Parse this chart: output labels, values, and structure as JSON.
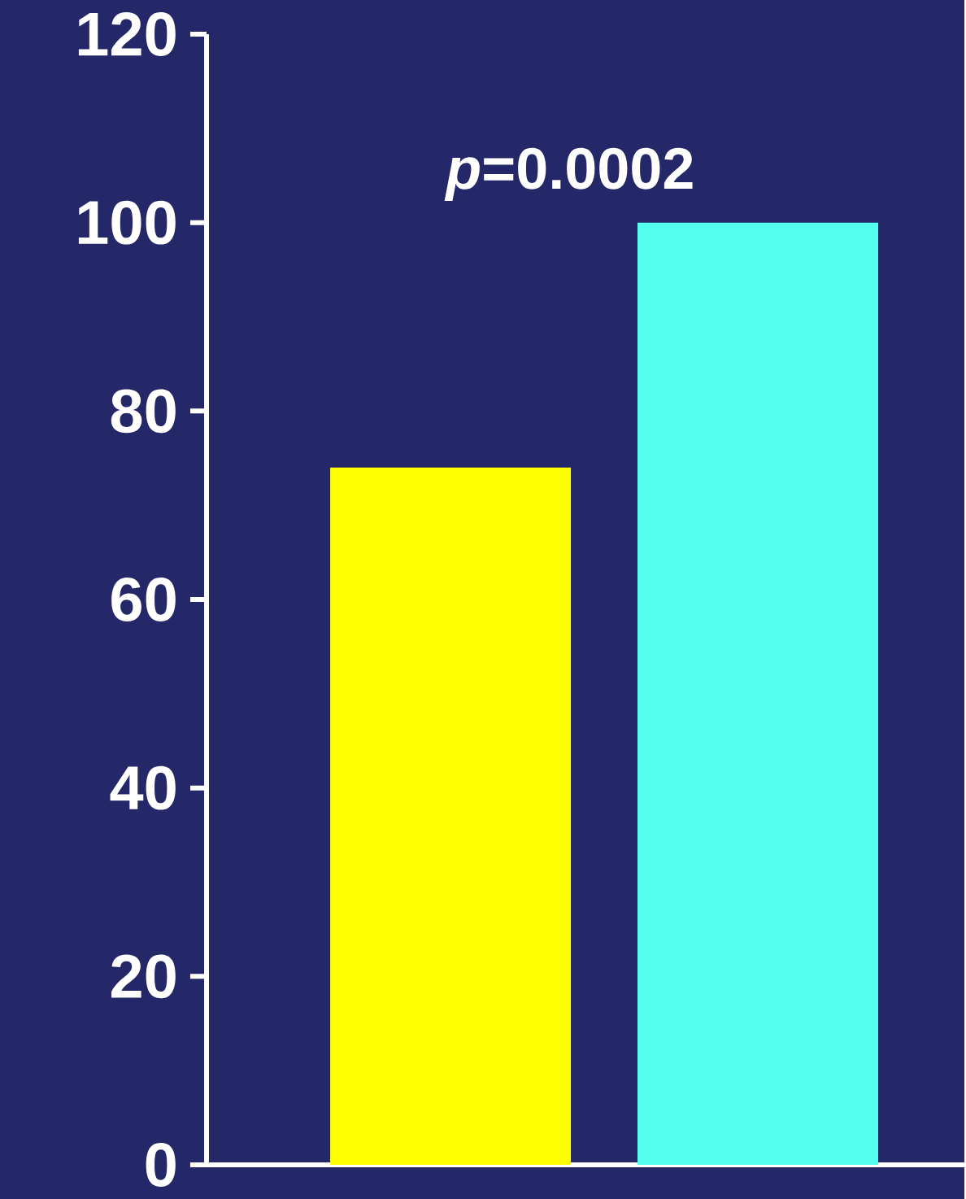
{
  "chart_data": {
    "type": "bar",
    "categories": [
      null,
      null
    ],
    "values": [
      74,
      100
    ],
    "colors": [
      "#ffff00",
      "#55ffee"
    ],
    "ylim": [
      0,
      120
    ],
    "yticks": [
      0,
      20,
      40,
      60,
      80,
      100,
      120
    ],
    "annotations": [
      "*p*=0.0002"
    ],
    "grid": false
  }
}
